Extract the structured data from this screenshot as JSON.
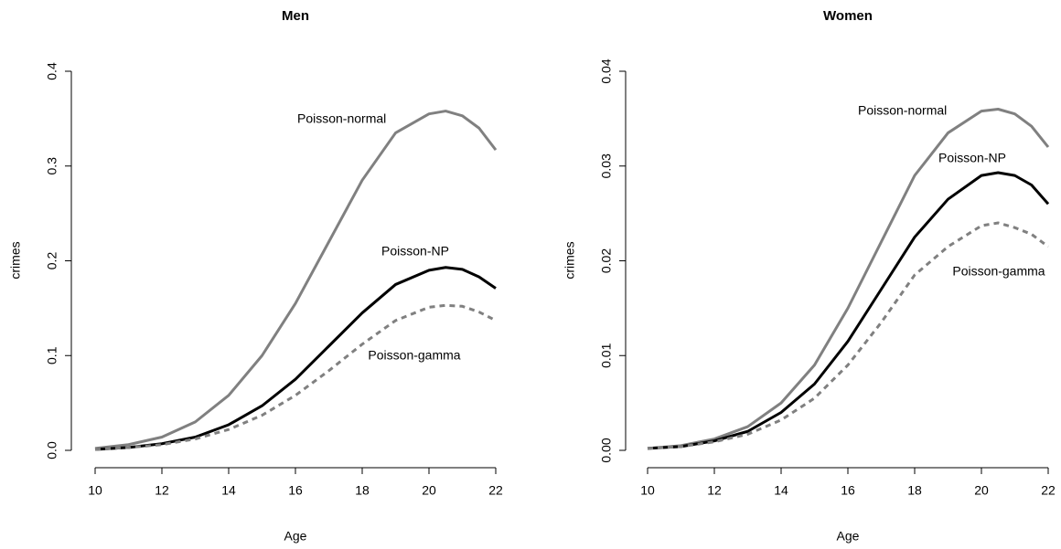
{
  "chart_data": [
    {
      "type": "line",
      "title": "Men",
      "x_label": "Age",
      "y_label": "crimes",
      "x": [
        10,
        11,
        12,
        13,
        14,
        15,
        16,
        17,
        18,
        19,
        20,
        20.5,
        21,
        21.5,
        22
      ],
      "series": [
        {
          "name": "Poisson-normal",
          "color": "#808080",
          "dashed": false,
          "values": [
            0.002,
            0.006,
            0.014,
            0.03,
            0.058,
            0.1,
            0.155,
            0.22,
            0.285,
            0.335,
            0.355,
            0.358,
            0.353,
            0.34,
            0.317
          ]
        },
        {
          "name": "Poisson-NP",
          "color": "#000000",
          "dashed": false,
          "values": [
            0.001,
            0.003,
            0.007,
            0.014,
            0.027,
            0.047,
            0.075,
            0.11,
            0.145,
            0.175,
            0.19,
            0.193,
            0.191,
            0.183,
            0.171
          ]
        },
        {
          "name": "Poisson-gamma",
          "color": "#808080",
          "dashed": true,
          "values": [
            0.001,
            0.003,
            0.006,
            0.012,
            0.022,
            0.037,
            0.058,
            0.084,
            0.112,
            0.137,
            0.151,
            0.153,
            0.152,
            0.146,
            0.137
          ]
        }
      ],
      "xlim": [
        10,
        22
      ],
      "xticks": [
        10,
        12,
        14,
        16,
        18,
        20,
        22
      ],
      "ylim": [
        0,
        0.4
      ],
      "yticks": [
        {
          "value": 0,
          "label": "0.0"
        },
        0.1,
        0.2,
        0.3,
        0.4
      ]
    },
    {
      "type": "line",
      "title": "Women",
      "x_label": "Age",
      "y_label": "crimes",
      "x": [
        10,
        11,
        12,
        13,
        14,
        15,
        16,
        17,
        18,
        19,
        20,
        20.5,
        21,
        21.5,
        22
      ],
      "series": [
        {
          "name": "Poisson-normal",
          "color": "#808080",
          "dashed": false,
          "values": [
            0.0002,
            0.0005,
            0.0012,
            0.0025,
            0.005,
            0.009,
            0.015,
            0.022,
            0.029,
            0.0335,
            0.0358,
            0.036,
            0.0355,
            0.0342,
            0.032
          ]
        },
        {
          "name": "Poisson-NP",
          "color": "#000000",
          "dashed": false,
          "values": [
            0.0002,
            0.0004,
            0.001,
            0.002,
            0.004,
            0.007,
            0.0115,
            0.017,
            0.0225,
            0.0265,
            0.029,
            0.0293,
            0.029,
            0.028,
            0.026
          ]
        },
        {
          "name": "Poisson-gamma",
          "color": "#808080",
          "dashed": true,
          "values": [
            0.0002,
            0.0004,
            0.0009,
            0.0017,
            0.0032,
            0.0055,
            0.009,
            0.0135,
            0.0185,
            0.0215,
            0.0237,
            0.024,
            0.0235,
            0.0228,
            0.0215
          ]
        }
      ],
      "xlim": [
        10,
        22
      ],
      "xticks": [
        10,
        12,
        14,
        16,
        18,
        20,
        22
      ],
      "ylim": [
        0,
        0.04
      ],
      "yticks": [
        {
          "value": 0,
          "label": "0.00"
        },
        {
          "value": 0.01,
          "label": "0.01"
        },
        {
          "value": 0.02,
          "label": "0.02"
        },
        {
          "value": 0.03,
          "label": "0.03"
        },
        {
          "value": 0.04,
          "label": "0.04"
        }
      ]
    }
  ]
}
